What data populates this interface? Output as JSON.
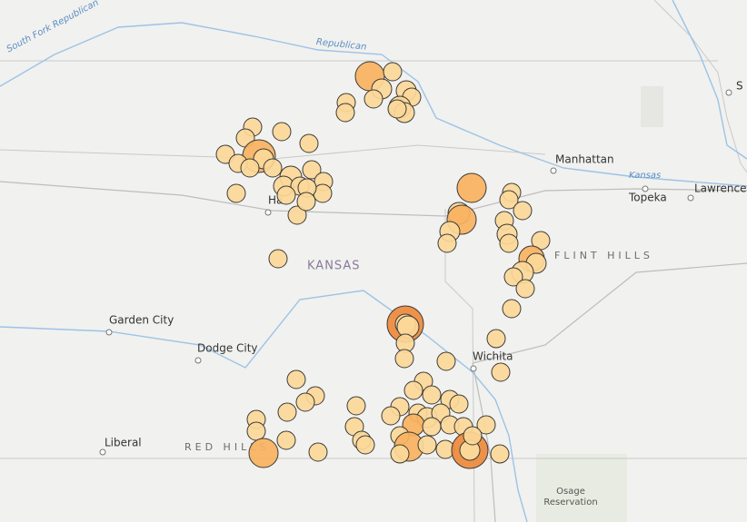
{
  "map": {
    "rivers": {
      "south_fork": "South Fork Republican",
      "republican": "Republican",
      "kansas": "Kansas"
    },
    "places": {
      "manhattan": "Manhattan",
      "topeka": "Topeka",
      "lawrence": "Lawrence",
      "hays": "Ha",
      "garden_city": "Garden City",
      "dodge_city": "Dodge City",
      "wichita": "Wichita",
      "liberal": "Liberal",
      "st_joseph": "S"
    },
    "regions": {
      "state": "KANSAS",
      "flint_hills": "FLINT HILLS",
      "red_hills": "RED HILLS"
    },
    "osage": [
      "Osage",
      "Reservation"
    ]
  }
}
